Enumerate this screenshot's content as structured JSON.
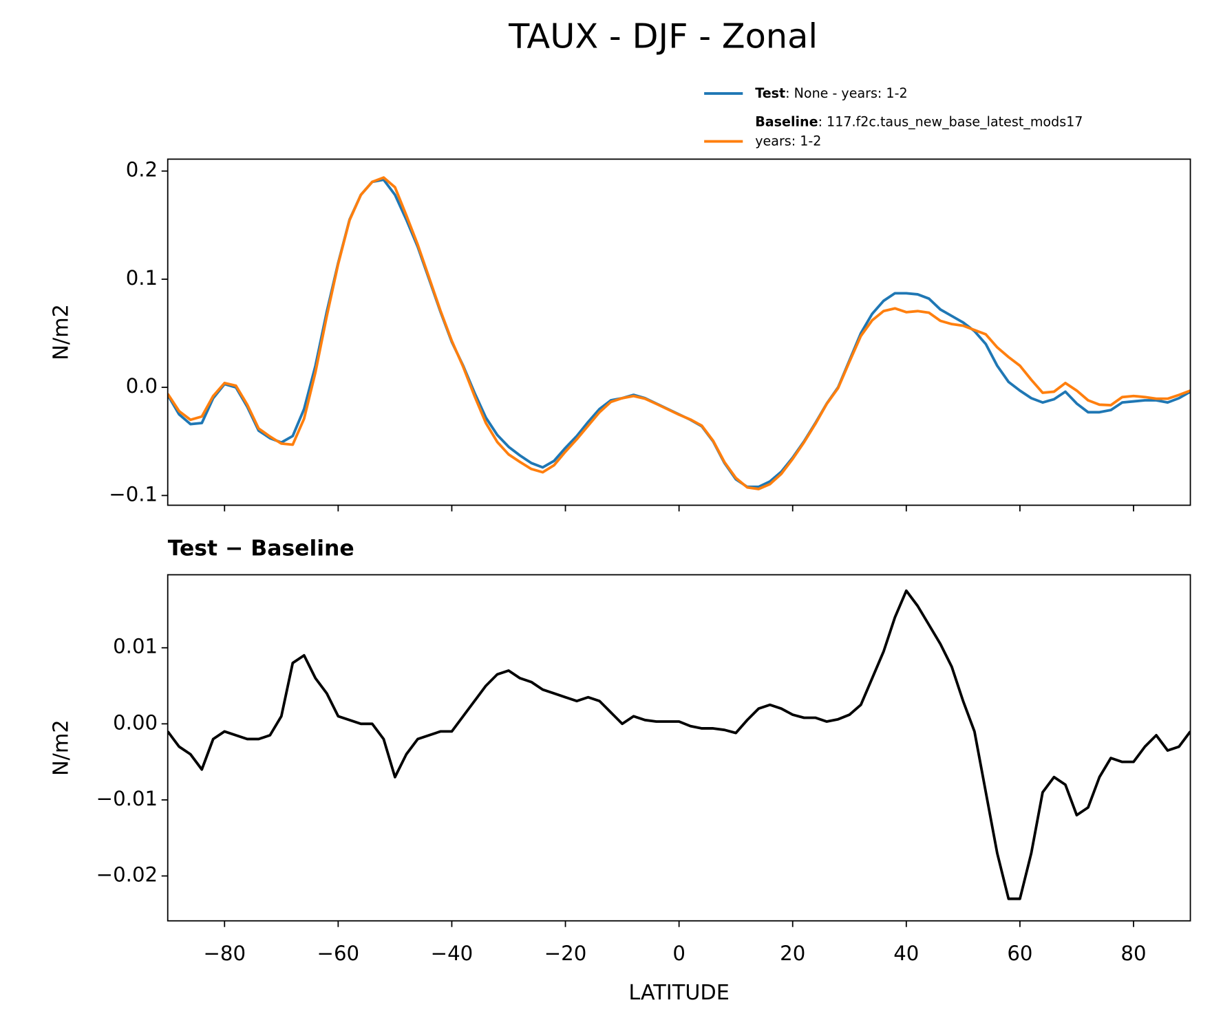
{
  "title": "TAUX - DJF - Zonal",
  "chart_data": [
    {
      "type": "line",
      "x": [
        -90,
        -88,
        -86,
        -84,
        -82,
        -80,
        -78,
        -76,
        -74,
        -72,
        -70,
        -68,
        -66,
        -64,
        -62,
        -60,
        -58,
        -56,
        -54,
        -52,
        -50,
        -48,
        -46,
        -44,
        -42,
        -40,
        -38,
        -36,
        -34,
        -32,
        -30,
        -28,
        -26,
        -24,
        -22,
        -20,
        -18,
        -16,
        -14,
        -12,
        -10,
        -8,
        -6,
        -4,
        -2,
        0,
        2,
        4,
        6,
        8,
        10,
        12,
        14,
        16,
        18,
        20,
        22,
        24,
        26,
        28,
        30,
        32,
        34,
        36,
        38,
        40,
        42,
        44,
        46,
        48,
        50,
        52,
        54,
        56,
        58,
        60,
        62,
        64,
        66,
        68,
        70,
        72,
        74,
        76,
        78,
        80,
        82,
        84,
        86,
        88,
        90
      ],
      "series": [
        {
          "name": "Test",
          "legend_label": [
            ": None - years: 1-2"
          ],
          "color": "#1f77b4",
          "values": [
            -0.007,
            -0.025,
            -0.034,
            -0.033,
            -0.01,
            0.003,
            0.0,
            -0.018,
            -0.04,
            -0.047,
            -0.051,
            -0.045,
            -0.02,
            0.02,
            0.07,
            0.115,
            0.155,
            0.178,
            0.19,
            0.192,
            0.178,
            0.155,
            0.13,
            0.1,
            0.07,
            0.042,
            0.02,
            -0.005,
            -0.028,
            -0.044,
            -0.055,
            -0.063,
            -0.07,
            -0.074,
            -0.068,
            -0.056,
            -0.045,
            -0.032,
            -0.02,
            -0.012,
            -0.01,
            -0.007,
            -0.01,
            -0.015,
            -0.02,
            -0.025,
            -0.03,
            -0.036,
            -0.05,
            -0.07,
            -0.085,
            -0.092,
            -0.092,
            -0.087,
            -0.078,
            -0.065,
            -0.05,
            -0.033,
            -0.015,
            0.0,
            0.025,
            0.05,
            0.068,
            0.08,
            0.087,
            0.087,
            0.086,
            0.082,
            0.072,
            0.066,
            0.06,
            0.052,
            0.04,
            0.02,
            0.005,
            -0.003,
            -0.01,
            -0.014,
            -0.011,
            -0.004,
            -0.015,
            -0.023,
            -0.023,
            -0.021,
            -0.014,
            -0.013,
            -0.012,
            -0.012,
            -0.014,
            -0.01,
            -0.004
          ]
        },
        {
          "name": "Baseline",
          "legend_label": [
            ": 117.f2c.taus_new_base_latest_mods17",
            "years: 1-2"
          ],
          "color": "#ff7f0e",
          "values": [
            -0.006,
            -0.022,
            -0.03,
            -0.027,
            -0.008,
            0.004,
            0.0015,
            -0.016,
            -0.038,
            -0.0455,
            -0.052,
            -0.053,
            -0.029,
            0.014,
            0.066,
            0.114,
            0.1545,
            0.178,
            0.19,
            0.194,
            0.185,
            0.159,
            0.132,
            0.1015,
            0.071,
            0.043,
            0.019,
            -0.008,
            -0.033,
            -0.0505,
            -0.062,
            -0.069,
            -0.0755,
            -0.0785,
            -0.072,
            -0.0595,
            -0.048,
            -0.0355,
            -0.023,
            -0.0135,
            -0.01,
            -0.008,
            -0.0105,
            -0.0153,
            -0.0203,
            -0.0253,
            -0.0297,
            -0.0354,
            -0.0494,
            -0.0692,
            -0.0838,
            -0.0925,
            -0.094,
            -0.0895,
            -0.08,
            -0.0662,
            -0.0508,
            -0.0338,
            -0.0153,
            -0.0006,
            0.0238,
            0.0475,
            0.062,
            0.0705,
            0.073,
            0.0695,
            0.0705,
            0.069,
            0.0615,
            0.0585,
            0.057,
            0.053,
            0.049,
            0.037,
            0.028,
            0.02,
            0.007,
            -0.005,
            -0.004,
            0.004,
            -0.003,
            -0.012,
            -0.016,
            -0.0165,
            -0.009,
            -0.008,
            -0.009,
            -0.0105,
            -0.0105,
            -0.007,
            -0.003
          ]
        }
      ],
      "ylabel": "N/m2",
      "xlim": [
        -90,
        90
      ],
      "xticks": [
        -80,
        -60,
        -40,
        -20,
        0,
        20,
        40,
        60,
        80
      ],
      "ylim": [
        -0.109,
        0.211
      ],
      "yticks": [
        {
          "value": -0.1,
          "label": "−0.1"
        },
        {
          "value": 0,
          "label": "0.0"
        },
        0.1,
        0.2
      ]
    },
    {
      "type": "line",
      "title": "Test − Baseline",
      "x": [
        -90,
        -88,
        -86,
        -84,
        -82,
        -80,
        -78,
        -76,
        -74,
        -72,
        -70,
        -68,
        -66,
        -64,
        -62,
        -60,
        -58,
        -56,
        -54,
        -52,
        -50,
        -48,
        -46,
        -44,
        -42,
        -40,
        -38,
        -36,
        -34,
        -32,
        -30,
        -28,
        -26,
        -24,
        -22,
        -20,
        -18,
        -16,
        -14,
        -12,
        -10,
        -8,
        -6,
        -4,
        -2,
        0,
        2,
        4,
        6,
        8,
        10,
        12,
        14,
        16,
        18,
        20,
        22,
        24,
        26,
        28,
        30,
        32,
        34,
        36,
        38,
        40,
        42,
        44,
        46,
        48,
        50,
        52,
        54,
        56,
        58,
        60,
        62,
        64,
        66,
        68,
        70,
        72,
        74,
        76,
        78,
        80,
        82,
        84,
        86,
        88,
        90
      ],
      "series": [
        {
          "color": "#000000",
          "values": [
            -0.001,
            -0.003,
            -0.004,
            -0.006,
            -0.002,
            -0.001,
            -0.0015,
            -0.002,
            -0.002,
            -0.0015,
            0.001,
            0.008,
            0.009,
            0.006,
            0.004,
            0.001,
            0.0005,
            0.0,
            0.0,
            -0.002,
            -0.007,
            -0.004,
            -0.002,
            -0.0015,
            -0.001,
            -0.001,
            0.001,
            0.003,
            0.005,
            0.0065,
            0.007,
            0.006,
            0.0055,
            0.0045,
            0.004,
            0.0035,
            0.003,
            0.0035,
            0.003,
            0.0015,
            0.0,
            0.001,
            0.0005,
            0.0003,
            0.0003,
            0.0003,
            -0.0003,
            -0.0006,
            -0.0006,
            -0.0008,
            -0.0012,
            0.0005,
            0.002,
            0.0025,
            0.002,
            0.0012,
            0.0008,
            0.0008,
            0.0003,
            0.0006,
            0.0012,
            0.0025,
            0.006,
            0.0095,
            0.014,
            0.0175,
            0.0155,
            0.013,
            0.0105,
            0.0075,
            0.003,
            -0.001,
            -0.009,
            -0.017,
            -0.023,
            -0.023,
            -0.017,
            -0.009,
            -0.007,
            -0.008,
            -0.012,
            -0.011,
            -0.007,
            -0.0045,
            -0.005,
            -0.005,
            -0.003,
            -0.0015,
            -0.0035,
            -0.003,
            -0.001
          ]
        }
      ],
      "ylabel": "N/m2",
      "xlabel": "LATITUDE",
      "xlim": [
        -90,
        90
      ],
      "xticks": [
        {
          "value": -80,
          "label": "−80"
        },
        {
          "value": -60,
          "label": "−60"
        },
        {
          "value": -40,
          "label": "−40"
        },
        {
          "value": -20,
          "label": "−20"
        },
        0,
        20,
        40,
        60,
        80
      ],
      "ylim": [
        -0.0259,
        0.0196
      ],
      "yticks": [
        {
          "value": -0.02,
          "label": "−0.02"
        },
        {
          "value": -0.01,
          "label": "−0.01"
        },
        {
          "value": 0,
          "label": "0.00"
        },
        0.01
      ]
    }
  ]
}
